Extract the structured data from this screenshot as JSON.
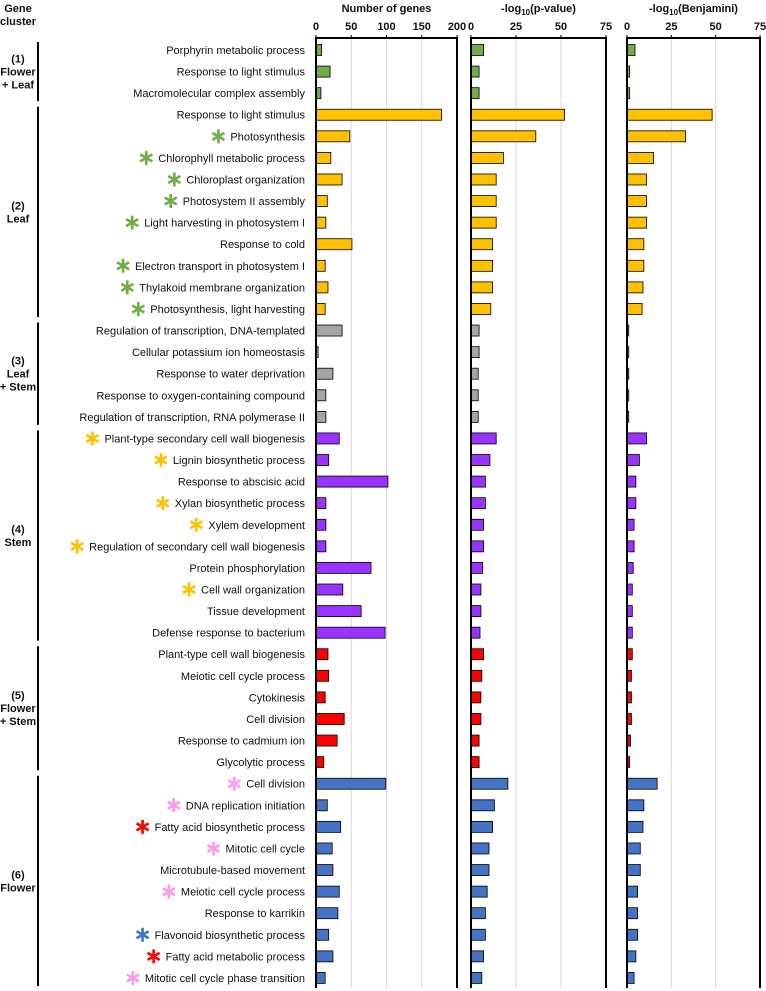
{
  "row_header": [
    "Gene",
    "cluster"
  ],
  "clusters": [
    {
      "label": [
        "(1)",
        "Flower",
        "+ Leaf"
      ],
      "color": "#70ad47",
      "items": [
        {
          "name": "Porphyrin metabolic process"
        },
        {
          "name": "Response to light stimulus"
        },
        {
          "name": "Macromolecular complex assembly"
        }
      ]
    },
    {
      "label": [
        "(2)",
        "Leaf"
      ],
      "color": "#ffc000",
      "items": [
        {
          "name": "Response to light stimulus"
        },
        {
          "name": "Photosynthesis",
          "star": "#70ad47"
        },
        {
          "name": "Chlorophyll metabolic process",
          "star": "#70ad47"
        },
        {
          "name": "Chloroplast organization",
          "star": "#70ad47"
        },
        {
          "name": "Photosystem II assembly",
          "star": "#70ad47"
        },
        {
          "name": "Light harvesting in photosystem I",
          "star": "#70ad47"
        },
        {
          "name": "Response to cold"
        },
        {
          "name": "Electron transport in photosystem I",
          "star": "#70ad47"
        },
        {
          "name": "Thylakoid membrane organization",
          "star": "#70ad47"
        },
        {
          "name": "Photosynthesis, light harvesting",
          "star": "#70ad47"
        }
      ]
    },
    {
      "label": [
        "(3)",
        "Leaf",
        "+ Stem"
      ],
      "color": "#a5a5a5",
      "items": [
        {
          "name": "Regulation of transcription, DNA-templated"
        },
        {
          "name": "Cellular potassium ion homeostasis"
        },
        {
          "name": "Response to water deprivation"
        },
        {
          "name": "Response to oxygen-containing compound"
        },
        {
          "name": "Regulation of transcription, RNA polymerase II"
        }
      ]
    },
    {
      "label": [
        "(4)",
        "Stem"
      ],
      "color": "#9933ff",
      "items": [
        {
          "name": "Plant-type secondary cell wall biogenesis",
          "star": "#ffc000"
        },
        {
          "name": "Lignin biosynthetic process",
          "star": "#ffc000"
        },
        {
          "name": "Response to abscisic acid"
        },
        {
          "name": "Xylan biosynthetic process",
          "star": "#ffc000"
        },
        {
          "name": "Xylem development",
          "star": "#ffc000"
        },
        {
          "name": "Regulation of secondary cell wall biogenesis",
          "star": "#ffc000"
        },
        {
          "name": "Protein phosphorylation"
        },
        {
          "name": "Cell wall organization",
          "star": "#ffc000"
        },
        {
          "name": "Tissue development"
        },
        {
          "name": "Defense response to bacterium"
        }
      ]
    },
    {
      "label": [
        "(5)",
        "Flower",
        "+ Stem"
      ],
      "color": "#ff0000",
      "items": [
        {
          "name": "Plant-type cell wall biogenesis"
        },
        {
          "name": "Meiotic cell cycle process"
        },
        {
          "name": "Cytokinesis"
        },
        {
          "name": "Cell division"
        },
        {
          "name": "Response to cadmium ion"
        },
        {
          "name": "Glycolytic process"
        }
      ]
    },
    {
      "label": [
        "(6)",
        "Flower"
      ],
      "color": "#4472c4",
      "items": [
        {
          "name": "Cell division",
          "star": "#ff99ee"
        },
        {
          "name": "DNA replication initiation",
          "star": "#ff99ee"
        },
        {
          "name": "Fatty acid biosynthetic process",
          "star": "#ff0000"
        },
        {
          "name": "Mitotic cell cycle",
          "star": "#ff99ee"
        },
        {
          "name": "Microtubule-based movement"
        },
        {
          "name": "Meiotic cell cycle process",
          "star": "#ff99ee"
        },
        {
          "name": "Response to karrikin"
        },
        {
          "name": "Flavonoid biosynthetic process",
          "star": "#4472c4"
        },
        {
          "name": "Fatty acid metabolic process",
          "star": "#ff0000"
        },
        {
          "name": "Mitotic cell cycle phase transition",
          "star": "#ff99ee"
        }
      ]
    }
  ],
  "chart_data": [
    {
      "type": "hbar",
      "title": [
        "Number of genes"
      ],
      "xlim": [
        0,
        200
      ],
      "xticks": [
        0,
        50,
        100,
        150,
        200
      ],
      "grid": true,
      "values": [
        8,
        20,
        7,
        178,
        48,
        21,
        37,
        16,
        14,
        51,
        13,
        17,
        13,
        37,
        3,
        24,
        14,
        14,
        33,
        18,
        102,
        14,
        14,
        14,
        78,
        38,
        64,
        98,
        17,
        18,
        13,
        40,
        30,
        11,
        99,
        16,
        35,
        23,
        24,
        33,
        31,
        18,
        24,
        13
      ]
    },
    {
      "type": "hbar",
      "title": [
        "-log",
        "10",
        "(p-value)"
      ],
      "xlim": [
        0,
        75
      ],
      "xticks": [
        0,
        25,
        50,
        75
      ],
      "grid": true,
      "values": [
        7,
        4.5,
        4.5,
        52,
        36,
        18,
        14,
        14,
        14,
        12,
        12,
        12,
        11,
        4.5,
        4.5,
        4,
        4,
        4,
        14,
        10.5,
        8,
        8,
        7,
        7,
        6.5,
        5.5,
        5.5,
        5,
        7,
        6,
        5.5,
        5.5,
        4.5,
        4.5,
        20.5,
        13,
        12,
        10,
        10,
        9,
        8,
        8,
        7,
        6
      ]
    },
    {
      "type": "hbar",
      "title": [
        "-log",
        "10",
        "(Benjamini)"
      ],
      "xlim": [
        0,
        75
      ],
      "xticks": [
        0,
        25,
        50,
        75
      ],
      "grid": true,
      "values": [
        4.5,
        1.5,
        1.5,
        48,
        33,
        15,
        11,
        11,
        11,
        9.5,
        9.5,
        9,
        8.5,
        1,
        1,
        1,
        1,
        1,
        11,
        7,
        5,
        5,
        4,
        4,
        3.5,
        3,
        3,
        3,
        3,
        2.5,
        2.5,
        2.5,
        2,
        1.5,
        17,
        9.5,
        9,
        7.5,
        7.5,
        6,
        6,
        6,
        5,
        4
      ]
    }
  ]
}
